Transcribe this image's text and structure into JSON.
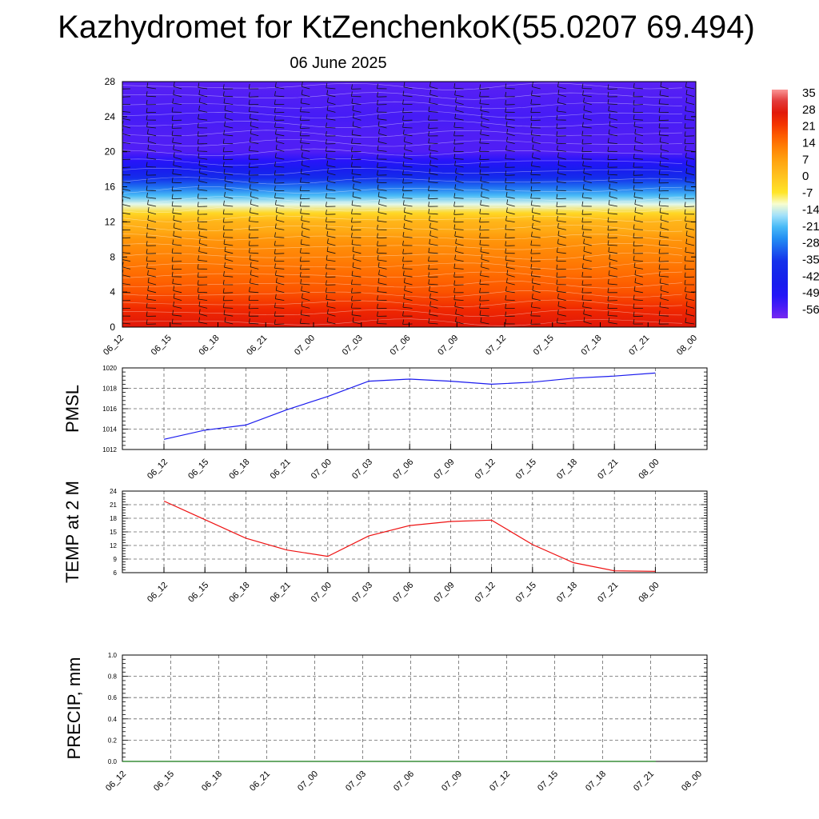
{
  "title": "Kazhydromet for KtZenchenkoK(55.0207 69.494)",
  "subtitle": "06 June 2025",
  "chart_data": [
    {
      "type": "heatmap",
      "x_ticks": [
        "06_12",
        "06_15",
        "06_18",
        "06_21",
        "07_00",
        "07_03",
        "07_06",
        "07_09",
        "07_12",
        "07_15",
        "07_18",
        "07_21",
        "08_00"
      ],
      "y_ticks": [
        0,
        4,
        8,
        12,
        16,
        20,
        24,
        28
      ],
      "ylim": [
        0,
        28
      ],
      "colorbar": {
        "labels": [
          "35",
          "28",
          "21",
          "14",
          "7",
          "0",
          "-7",
          "-14",
          "-21",
          "-28",
          "-35",
          "-42",
          "-49",
          "-56"
        ],
        "range": [
          -60,
          35
        ]
      },
      "temperature_profile": {
        "levels": [
          0,
          2,
          4,
          6,
          8,
          10,
          11,
          12,
          13,
          14,
          15,
          16,
          17,
          18,
          19,
          20,
          22,
          24,
          26,
          28
        ],
        "values": [
          26,
          22,
          17,
          14,
          11,
          8,
          4,
          2,
          -5,
          -14,
          -22,
          -30,
          -38,
          -46,
          -52,
          -56,
          -56,
          -55,
          -56,
          -57
        ]
      },
      "wind_barbs": true
    },
    {
      "type": "line",
      "ylabel": "PMSL",
      "x_ticks": [
        "06_12",
        "06_15",
        "06_18",
        "06_21",
        "07_00",
        "07_03",
        "07_06",
        "07_09",
        "07_12",
        "07_15",
        "07_18",
        "07_21",
        "08_00"
      ],
      "ylim": [
        1012,
        1020
      ],
      "y_ticks": [
        "1012",
        "1014",
        "1016",
        "1018",
        "1020"
      ],
      "series": [
        {
          "color": "#1a1aee",
          "values": [
            1013.0,
            1013.9,
            1014.4,
            1015.9,
            1017.2,
            1018.7,
            1018.9,
            1018.7,
            1018.4,
            1018.6,
            1019.0,
            1019.2,
            1019.5
          ]
        }
      ],
      "grid": true
    },
    {
      "type": "line",
      "ylabel": "TEMP at 2 M",
      "x_ticks": [
        "06_12",
        "06_15",
        "06_18",
        "06_21",
        "07_00",
        "07_03",
        "07_06",
        "07_09",
        "07_12",
        "07_15",
        "07_18",
        "07_21",
        "08_00"
      ],
      "ylim": [
        6,
        24
      ],
      "y_ticks": [
        "6",
        "9",
        "12",
        "15",
        "18",
        "21",
        "24"
      ],
      "series": [
        {
          "color": "#ee1111",
          "values": [
            21.8,
            17.7,
            13.6,
            11.0,
            9.6,
            14.1,
            16.4,
            17.3,
            17.6,
            12.2,
            8.2,
            6.4,
            6.3
          ]
        }
      ],
      "grid": true
    },
    {
      "type": "line",
      "ylabel": "PRECIP, mm",
      "x_ticks": [
        "06_12",
        "06_15",
        "06_18",
        "06_21",
        "07_00",
        "07_03",
        "07_06",
        "07_09",
        "07_12",
        "07_15",
        "07_18",
        "07_21",
        "08_00"
      ],
      "ylim": [
        0,
        1
      ],
      "y_ticks": [
        "0.0",
        "0.2",
        "0.4",
        "0.6",
        "0.8",
        "1.0"
      ],
      "series": [
        {
          "color": "#117711",
          "values": [
            0,
            0,
            0,
            0,
            0,
            0,
            0,
            0,
            0,
            0,
            0,
            0
          ]
        }
      ],
      "grid": true
    }
  ]
}
